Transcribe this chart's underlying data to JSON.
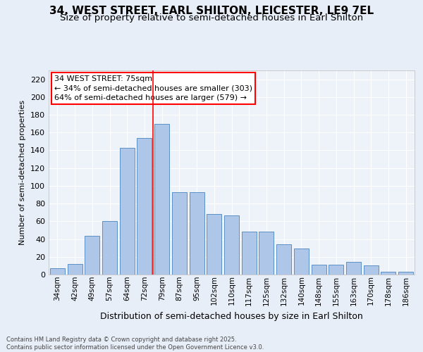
{
  "title": "34, WEST STREET, EARL SHILTON, LEICESTER, LE9 7EL",
  "subtitle": "Size of property relative to semi-detached houses in Earl Shilton",
  "xlabel": "Distribution of semi-detached houses by size in Earl Shilton",
  "ylabel": "Number of semi-detached properties",
  "categories": [
    "34sqm",
    "42sqm",
    "49sqm",
    "57sqm",
    "64sqm",
    "72sqm",
    "79sqm",
    "87sqm",
    "95sqm",
    "102sqm",
    "110sqm",
    "117sqm",
    "125sqm",
    "132sqm",
    "140sqm",
    "148sqm",
    "155sqm",
    "163sqm",
    "170sqm",
    "178sqm",
    "186sqm"
  ],
  "values": [
    7,
    12,
    44,
    60,
    143,
    154,
    170,
    93,
    93,
    68,
    67,
    48,
    48,
    34,
    29,
    11,
    11,
    14,
    10,
    3,
    3
  ],
  "bar_color": "#aec6e8",
  "bar_edge_color": "#5b8fc4",
  "annotation_text": "34 WEST STREET: 75sqm\n← 34% of semi-detached houses are smaller (303)\n64% of semi-detached houses are larger (579) →",
  "footer_text": "Contains HM Land Registry data © Crown copyright and database right 2025.\nContains public sector information licensed under the Open Government Licence v3.0.",
  "ylim": [
    0,
    230
  ],
  "yticks": [
    0,
    20,
    40,
    60,
    80,
    100,
    120,
    140,
    160,
    180,
    200,
    220
  ],
  "bg_color": "#e8eef7",
  "plot_bg_color": "#eef2f9",
  "grid_color": "#ffffff",
  "title_fontsize": 11,
  "subtitle_fontsize": 9.5,
  "red_line_x": 5.5
}
